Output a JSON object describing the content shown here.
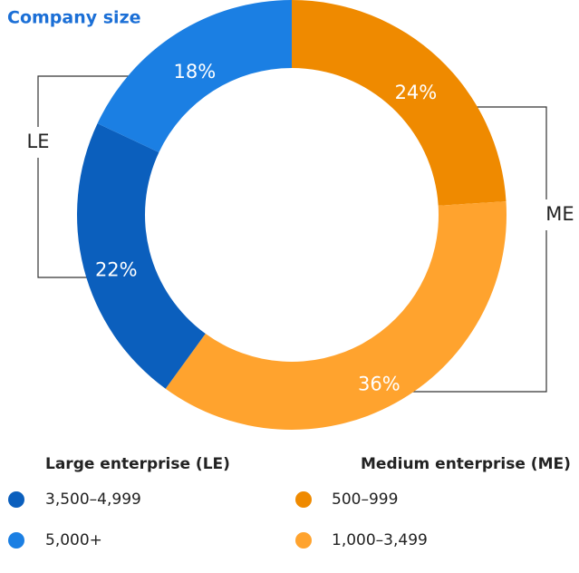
{
  "chart_data": {
    "type": "pie",
    "title": "Company size",
    "categories": [
      "500–999",
      "1,000–3,499",
      "3,500–4,999",
      "5,000+"
    ],
    "values": [
      24,
      36,
      22,
      18
    ],
    "value_labels": [
      "24%",
      "36%",
      "22%",
      "18%"
    ],
    "colors": [
      "#ef8a00",
      "#ffa32e",
      "#0b5fbd",
      "#1b7fe3"
    ],
    "groups": [
      {
        "name": "Large enterprise (LE)",
        "abbr": "LE",
        "members": [
          2,
          3
        ]
      },
      {
        "name": "Medium enterprise (ME)",
        "abbr": "ME",
        "members": [
          0,
          1
        ]
      }
    ]
  }
}
